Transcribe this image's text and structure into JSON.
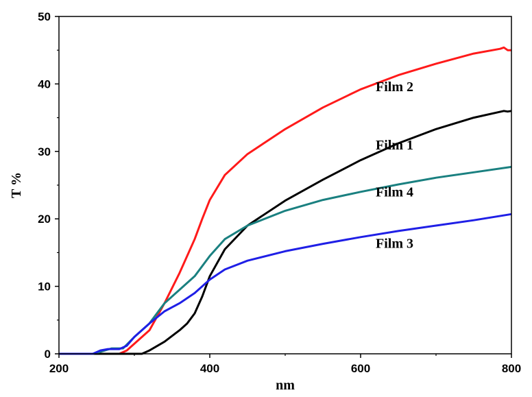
{
  "chart_data": {
    "type": "line",
    "title": "",
    "xlabel": "nm",
    "ylabel": "T %",
    "xlim": [
      200,
      800
    ],
    "ylim": [
      0,
      50
    ],
    "xticks": [
      200,
      400,
      600,
      800
    ],
    "yticks": [
      0,
      10,
      20,
      30,
      40,
      50
    ],
    "grid": false,
    "series": [
      {
        "name": "Film 2",
        "color": "#ff1a1a",
        "points": [
          [
            200,
            0
          ],
          [
            250,
            0
          ],
          [
            280,
            0
          ],
          [
            290,
            0.5
          ],
          [
            300,
            1.5
          ],
          [
            320,
            3.5
          ],
          [
            340,
            7.5
          ],
          [
            360,
            12
          ],
          [
            380,
            17
          ],
          [
            390,
            20
          ],
          [
            400,
            22.8
          ],
          [
            420,
            26.5
          ],
          [
            450,
            29.6
          ],
          [
            500,
            33.3
          ],
          [
            550,
            36.5
          ],
          [
            600,
            39.2
          ],
          [
            650,
            41.3
          ],
          [
            700,
            43
          ],
          [
            750,
            44.5
          ],
          [
            785,
            45.2
          ],
          [
            790,
            45.4
          ],
          [
            795,
            45
          ],
          [
            800,
            45
          ]
        ]
      },
      {
        "name": "Film 1",
        "color": "#000000",
        "points": [
          [
            200,
            0
          ],
          [
            300,
            0
          ],
          [
            310,
            0
          ],
          [
            320,
            0.5
          ],
          [
            340,
            1.8
          ],
          [
            360,
            3.5
          ],
          [
            370,
            4.5
          ],
          [
            380,
            6
          ],
          [
            390,
            8.5
          ],
          [
            400,
            11.5
          ],
          [
            420,
            15.5
          ],
          [
            450,
            19
          ],
          [
            500,
            22.7
          ],
          [
            550,
            25.8
          ],
          [
            600,
            28.7
          ],
          [
            650,
            31.2
          ],
          [
            700,
            33.3
          ],
          [
            750,
            35
          ],
          [
            790,
            36
          ],
          [
            795,
            35.9
          ],
          [
            800,
            36
          ]
        ]
      },
      {
        "name": "Film 4",
        "color": "#1a8080",
        "points": [
          [
            200,
            0
          ],
          [
            245,
            0
          ],
          [
            255,
            0.3
          ],
          [
            270,
            0.8
          ],
          [
            285,
            0.8
          ],
          [
            300,
            2.5
          ],
          [
            320,
            4.5
          ],
          [
            340,
            7.5
          ],
          [
            360,
            9.5
          ],
          [
            380,
            11.5
          ],
          [
            400,
            14.5
          ],
          [
            420,
            17
          ],
          [
            450,
            19
          ],
          [
            500,
            21.2
          ],
          [
            550,
            22.8
          ],
          [
            600,
            24
          ],
          [
            650,
            25.1
          ],
          [
            700,
            26.1
          ],
          [
            750,
            26.9
          ],
          [
            800,
            27.7
          ]
        ]
      },
      {
        "name": "Film 3",
        "color": "#1f1fe6",
        "points": [
          [
            200,
            0
          ],
          [
            245,
            0
          ],
          [
            255,
            0.5
          ],
          [
            265,
            0.7
          ],
          [
            280,
            0.7
          ],
          [
            290,
            1.2
          ],
          [
            300,
            2.5
          ],
          [
            320,
            4.5
          ],
          [
            340,
            6.3
          ],
          [
            360,
            7.5
          ],
          [
            380,
            9
          ],
          [
            400,
            11
          ],
          [
            420,
            12.5
          ],
          [
            450,
            13.8
          ],
          [
            500,
            15.2
          ],
          [
            550,
            16.3
          ],
          [
            600,
            17.3
          ],
          [
            650,
            18.2
          ],
          [
            700,
            19
          ],
          [
            750,
            19.8
          ],
          [
            800,
            20.7
          ]
        ]
      }
    ],
    "annotations": [
      {
        "text": "Film 2",
        "x": 620,
        "y": 38.9
      },
      {
        "text": "Film 1",
        "x": 620,
        "y": 30.3
      },
      {
        "text": "Film 4",
        "x": 620,
        "y": 23.3
      },
      {
        "text": "Film 3",
        "x": 620,
        "y": 15.7
      }
    ]
  }
}
